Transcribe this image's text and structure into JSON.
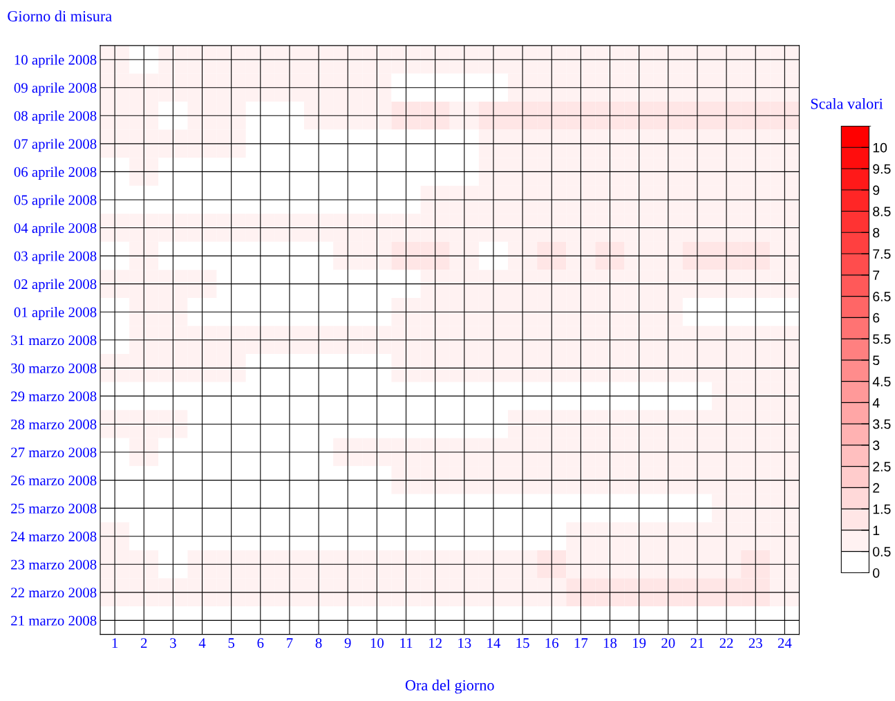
{
  "chart_data": {
    "type": "heatmap",
    "xlabel": "Ora del giorno",
    "ylabel": "Giorno di misura",
    "clabel": "Scala valori",
    "categories": [
      "1",
      "2",
      "3",
      "4",
      "5",
      "6",
      "7",
      "8",
      "9",
      "10",
      "11",
      "12",
      "13",
      "14",
      "15",
      "16",
      "17",
      "18",
      "19",
      "20",
      "21",
      "22",
      "23",
      "24"
    ],
    "y_categories": [
      "10 aprile 2008",
      "09 aprile 2008",
      "08 aprile 2008",
      "07 aprile 2008",
      "06 aprile 2008",
      "05 aprile 2008",
      "04 aprile 2008",
      "03 aprile 2008",
      "02 aprile 2008",
      "01 aprile 2008",
      "31 marzo 2008",
      "30 marzo 2008",
      "29 marzo 2008",
      "28 marzo 2008",
      "27 marzo 2008",
      "26 marzo 2008",
      "25 marzo 2008",
      "24 marzo 2008",
      "23 marzo 2008",
      "22 marzo 2008",
      "21 marzo 2008"
    ],
    "cells": [
      [
        0.75,
        0.25,
        0.75,
        0.75,
        0.75,
        0.75,
        0.75,
        0.75,
        0.75,
        0.75,
        0.75,
        0.75,
        0.75,
        0.75,
        0.75,
        0.75,
        0.75,
        0.75,
        0.75,
        0.75,
        0.75,
        0.75,
        0.75,
        0.75
      ],
      [
        0.75,
        0.75,
        0.75,
        0.75,
        0.75,
        0.75,
        0.75,
        0.75,
        0.75,
        0.75,
        0.25,
        0.25,
        0.25,
        0.25,
        0.75,
        0.75,
        0.75,
        0.75,
        0.75,
        0.75,
        0.75,
        0.75,
        0.75,
        0.75
      ],
      [
        0.75,
        0.75,
        0.25,
        0.75,
        0.75,
        0.25,
        0.25,
        0.75,
        0.75,
        0.75,
        1.25,
        1.25,
        0.75,
        1.25,
        1.25,
        1.25,
        1.25,
        1.25,
        1.25,
        1.25,
        1.25,
        1.25,
        1.25,
        1.25
      ],
      [
        0.75,
        0.75,
        0.75,
        0.75,
        0.75,
        0.25,
        0.25,
        0.25,
        0.25,
        0.25,
        0.25,
        0.25,
        0.25,
        0.75,
        0.75,
        0.75,
        0.75,
        0.75,
        0.75,
        0.75,
        0.75,
        0.75,
        0.75,
        0.75
      ],
      [
        0.25,
        0.75,
        0.25,
        0.25,
        0.25,
        0.25,
        0.25,
        0.25,
        0.25,
        0.25,
        0.25,
        0.25,
        0.25,
        0.75,
        0.75,
        0.75,
        0.75,
        0.75,
        0.75,
        0.75,
        0.75,
        0.75,
        0.75,
        0.75
      ],
      [
        0.25,
        0.25,
        0.25,
        0.25,
        0.25,
        0.25,
        0.25,
        0.25,
        0.25,
        0.25,
        0.25,
        0.75,
        0.75,
        0.75,
        0.75,
        0.75,
        0.75,
        0.75,
        0.75,
        0.75,
        0.75,
        0.75,
        0.75,
        0.75
      ],
      [
        0.75,
        0.75,
        0.75,
        0.75,
        0.75,
        0.75,
        0.75,
        0.75,
        0.75,
        0.75,
        0.75,
        0.75,
        0.75,
        0.75,
        0.75,
        0.75,
        0.75,
        0.75,
        0.75,
        0.75,
        0.75,
        0.75,
        0.75,
        0.75
      ],
      [
        0.25,
        0.75,
        0.25,
        0.25,
        0.25,
        0.25,
        0.25,
        0.25,
        0.75,
        0.75,
        1.25,
        1.25,
        0.75,
        0.25,
        0.75,
        1.25,
        0.75,
        1.25,
        0.75,
        0.75,
        1.25,
        1.25,
        1.25,
        0.75
      ],
      [
        0.75,
        0.75,
        0.75,
        0.75,
        0.25,
        0.25,
        0.25,
        0.25,
        0.25,
        0.25,
        0.25,
        0.75,
        0.75,
        0.75,
        0.75,
        0.75,
        0.75,
        0.75,
        0.75,
        0.75,
        0.75,
        0.75,
        0.75,
        0.75
      ],
      [
        0.25,
        0.75,
        0.75,
        0.25,
        0.25,
        0.25,
        0.25,
        0.25,
        0.25,
        0.25,
        0.75,
        0.75,
        0.75,
        0.75,
        0.75,
        0.75,
        0.75,
        0.75,
        0.75,
        0.75,
        0.25,
        0.25,
        0.25,
        0.25
      ],
      [
        0.25,
        0.75,
        0.75,
        0.75,
        0.75,
        0.75,
        0.75,
        0.75,
        0.75,
        0.75,
        0.75,
        0.75,
        0.75,
        0.75,
        0.75,
        0.75,
        0.75,
        0.75,
        0.75,
        0.75,
        0.75,
        0.75,
        0.75,
        0.75
      ],
      [
        0.75,
        0.75,
        0.75,
        0.75,
        0.75,
        0.25,
        0.25,
        0.25,
        0.25,
        0.25,
        0.75,
        0.75,
        0.75,
        0.75,
        0.75,
        0.75,
        0.75,
        0.75,
        0.75,
        0.75,
        0.75,
        0.75,
        0.75,
        0.75
      ],
      [
        0.25,
        0.25,
        0.25,
        0.25,
        0.25,
        0.25,
        0.25,
        0.25,
        0.25,
        0.25,
        0.25,
        0.25,
        0.25,
        0.25,
        0.25,
        0.25,
        0.25,
        0.25,
        0.25,
        0.25,
        0.25,
        0.75,
        0.75,
        0.75
      ],
      [
        0.75,
        0.75,
        0.75,
        0.25,
        0.25,
        0.25,
        0.25,
        0.25,
        0.25,
        0.25,
        0.25,
        0.25,
        0.25,
        0.25,
        0.75,
        0.75,
        0.75,
        0.75,
        0.75,
        0.75,
        0.75,
        0.75,
        0.75,
        0.75
      ],
      [
        0.25,
        0.75,
        0.25,
        0.25,
        0.25,
        0.25,
        0.25,
        0.25,
        0.75,
        0.75,
        0.75,
        0.75,
        0.75,
        0.75,
        0.75,
        0.75,
        0.75,
        0.75,
        0.75,
        0.75,
        0.75,
        0.75,
        0.75,
        0.75
      ],
      [
        0.25,
        0.25,
        0.25,
        0.25,
        0.25,
        0.25,
        0.25,
        0.25,
        0.25,
        0.25,
        0.75,
        0.75,
        0.75,
        0.75,
        0.75,
        0.75,
        0.75,
        0.75,
        0.75,
        0.75,
        0.75,
        0.75,
        0.75,
        0.75
      ],
      [
        0.25,
        0.25,
        0.25,
        0.25,
        0.25,
        0.25,
        0.25,
        0.25,
        0.25,
        0.25,
        0.25,
        0.25,
        0.25,
        0.25,
        0.25,
        0.25,
        0.25,
        0.25,
        0.25,
        0.25,
        0.25,
        0.75,
        0.75,
        0.75
      ],
      [
        0.75,
        0.25,
        0.25,
        0.25,
        0.25,
        0.25,
        0.25,
        0.25,
        0.25,
        0.25,
        0.25,
        0.25,
        0.25,
        0.25,
        0.25,
        0.25,
        0.75,
        0.75,
        0.75,
        0.75,
        0.75,
        0.75,
        0.75,
        0.75
      ],
      [
        0.75,
        0.75,
        0.25,
        0.75,
        0.75,
        0.75,
        0.75,
        0.75,
        0.75,
        0.75,
        0.75,
        0.75,
        0.75,
        0.75,
        0.75,
        1.25,
        0.75,
        0.75,
        0.75,
        0.75,
        0.75,
        0.75,
        1.25,
        0.75
      ],
      [
        0.75,
        0.75,
        0.75,
        0.75,
        0.75,
        0.75,
        0.75,
        0.75,
        0.75,
        0.75,
        0.75,
        0.75,
        0.75,
        0.75,
        0.75,
        0.75,
        1.25,
        1.25,
        1.25,
        1.25,
        1.25,
        1.25,
        1.25,
        0.75
      ],
      [
        0.25,
        0.25,
        0.25,
        0.25,
        0.25,
        0.25,
        0.25,
        0.25,
        0.25,
        0.25,
        0.25,
        0.25,
        0.25,
        0.25,
        0.25,
        0.25,
        0.25,
        0.25,
        0.25,
        0.25,
        0.25,
        0.25,
        0.25,
        0.25
      ]
    ],
    "clim": [
      0,
      10.5
    ],
    "cticks": [
      0,
      0.5,
      1,
      1.5,
      2,
      2.5,
      3,
      3.5,
      4,
      4.5,
      5,
      5.5,
      6,
      6.5,
      7,
      7.5,
      8,
      8.5,
      9,
      9.5,
      10
    ],
    "grid": true
  }
}
